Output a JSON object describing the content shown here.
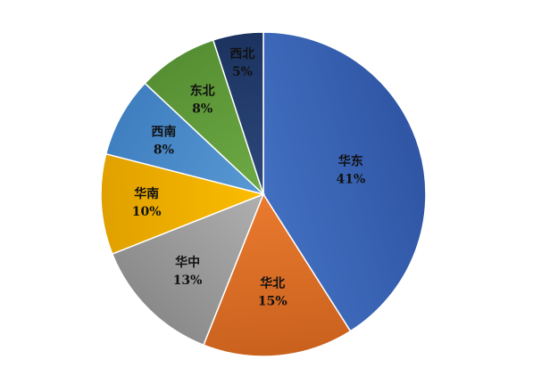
{
  "chart_data": {
    "type": "pie",
    "title": "",
    "start_angle_deg": 0,
    "direction": "clockwise",
    "slices": [
      {
        "label": "华东",
        "value": 41,
        "value_text": "41%",
        "color": "#4472c4",
        "color_dark": "#2f55a4"
      },
      {
        "label": "华北",
        "value": 15,
        "value_text": "15%",
        "color": "#ed7d31",
        "color_dark": "#c9611d"
      },
      {
        "label": "华中",
        "value": 13,
        "value_text": "13%",
        "color": "#b3b3b3",
        "color_dark": "#8a8a8a"
      },
      {
        "label": "华南",
        "value": 10,
        "value_text": "10%",
        "color": "#ffc000",
        "color_dark": "#e0a000"
      },
      {
        "label": "西南",
        "value": 8,
        "value_text": "8%",
        "color": "#5b9bd5",
        "color_dark": "#3f7fc0"
      },
      {
        "label": "东北",
        "value": 8,
        "value_text": "8%",
        "color": "#70ad47",
        "color_dark": "#568f33"
      },
      {
        "label": "西北",
        "value": 5,
        "value_text": "5%",
        "color": "#2e4a7d",
        "color_dark": "#1c3360"
      }
    ]
  }
}
